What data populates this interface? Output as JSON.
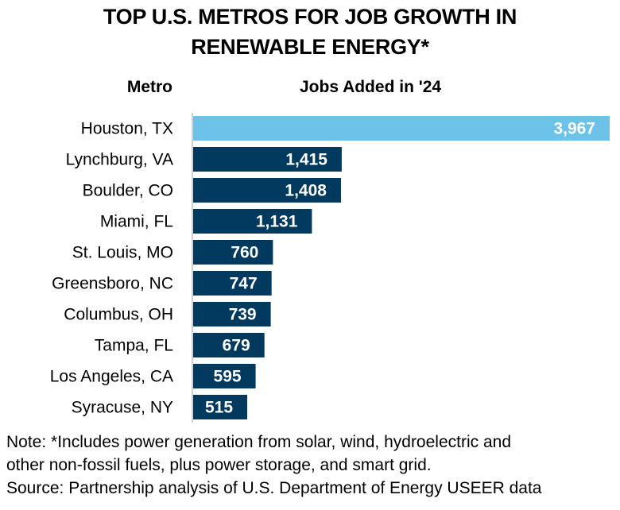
{
  "chart_data": {
    "type": "bar",
    "orientation": "horizontal",
    "title_lines": [
      "TOP U.S. METROS FOR JOB GROWTH IN",
      "RENEWABLE ENERGY*"
    ],
    "category_header": "Metro",
    "value_header": "Jobs Added in '24",
    "categories": [
      "Houston, TX",
      "Lynchburg, VA",
      "Boulder, CO",
      "Miami, FL",
      "St. Louis, MO",
      "Greensboro, NC",
      "Columbus, OH",
      "Tampa, FL",
      "Los Angeles, CA",
      "Syracuse, NY"
    ],
    "values": [
      3967,
      1415,
      1408,
      1131,
      760,
      747,
      739,
      679,
      595,
      515
    ],
    "value_labels": [
      "3,967",
      "1,415",
      "1,408",
      "1,131",
      "760",
      "747",
      "739",
      "679",
      "595",
      "515"
    ],
    "highlight_index": 0,
    "colors": {
      "highlight": "#6cc2e8",
      "default": "#02395e",
      "axis": "#d0d0d0"
    },
    "xlim": [
      0,
      3967
    ],
    "grid": false,
    "legend": "none"
  },
  "notes": {
    "line1": "Note: *Includes power generation from solar, wind, hydroelectric and",
    "line2": "other non-fossil fuels, plus power storage, and smart grid.",
    "source": "Source: Partnership analysis of U.S. Department of Energy USEER data"
  }
}
